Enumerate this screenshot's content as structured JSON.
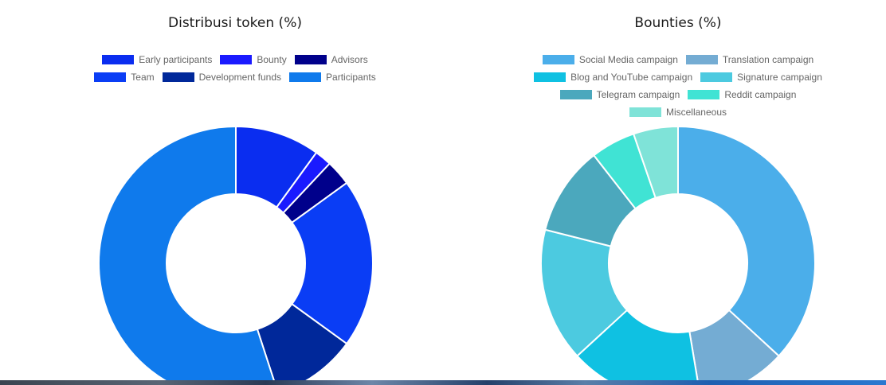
{
  "chart_data": [
    {
      "type": "pie",
      "title": "Distribusi token (%)",
      "legend_position": "top",
      "categories": [
        "Early participants",
        "Bounty",
        "Advisors",
        "Team",
        "Development funds",
        "Participants"
      ],
      "values": [
        10,
        2,
        3,
        20,
        10,
        55
      ],
      "colors": [
        "#0a2df0",
        "#1a1aff",
        "#00008b",
        "#0a3df5",
        "#00289a",
        "#0f7aec"
      ]
    },
    {
      "type": "pie",
      "title": "Bounties (%)",
      "legend_position": "top",
      "categories": [
        "Social Media campaign",
        "Translation campaign",
        "Blog and YouTube campaign",
        "Signature campaign",
        "Telegram campaign",
        "Reddit campaign",
        "Miscellaneous"
      ],
      "values": [
        35,
        10,
        15,
        15,
        10,
        5,
        5
      ],
      "colors": [
        "#4baeea",
        "#74acd3",
        "#0fc1e2",
        "#4ccae0",
        "#4ba8bd",
        "#40e3d4",
        "#7fe3d8"
      ]
    }
  ]
}
